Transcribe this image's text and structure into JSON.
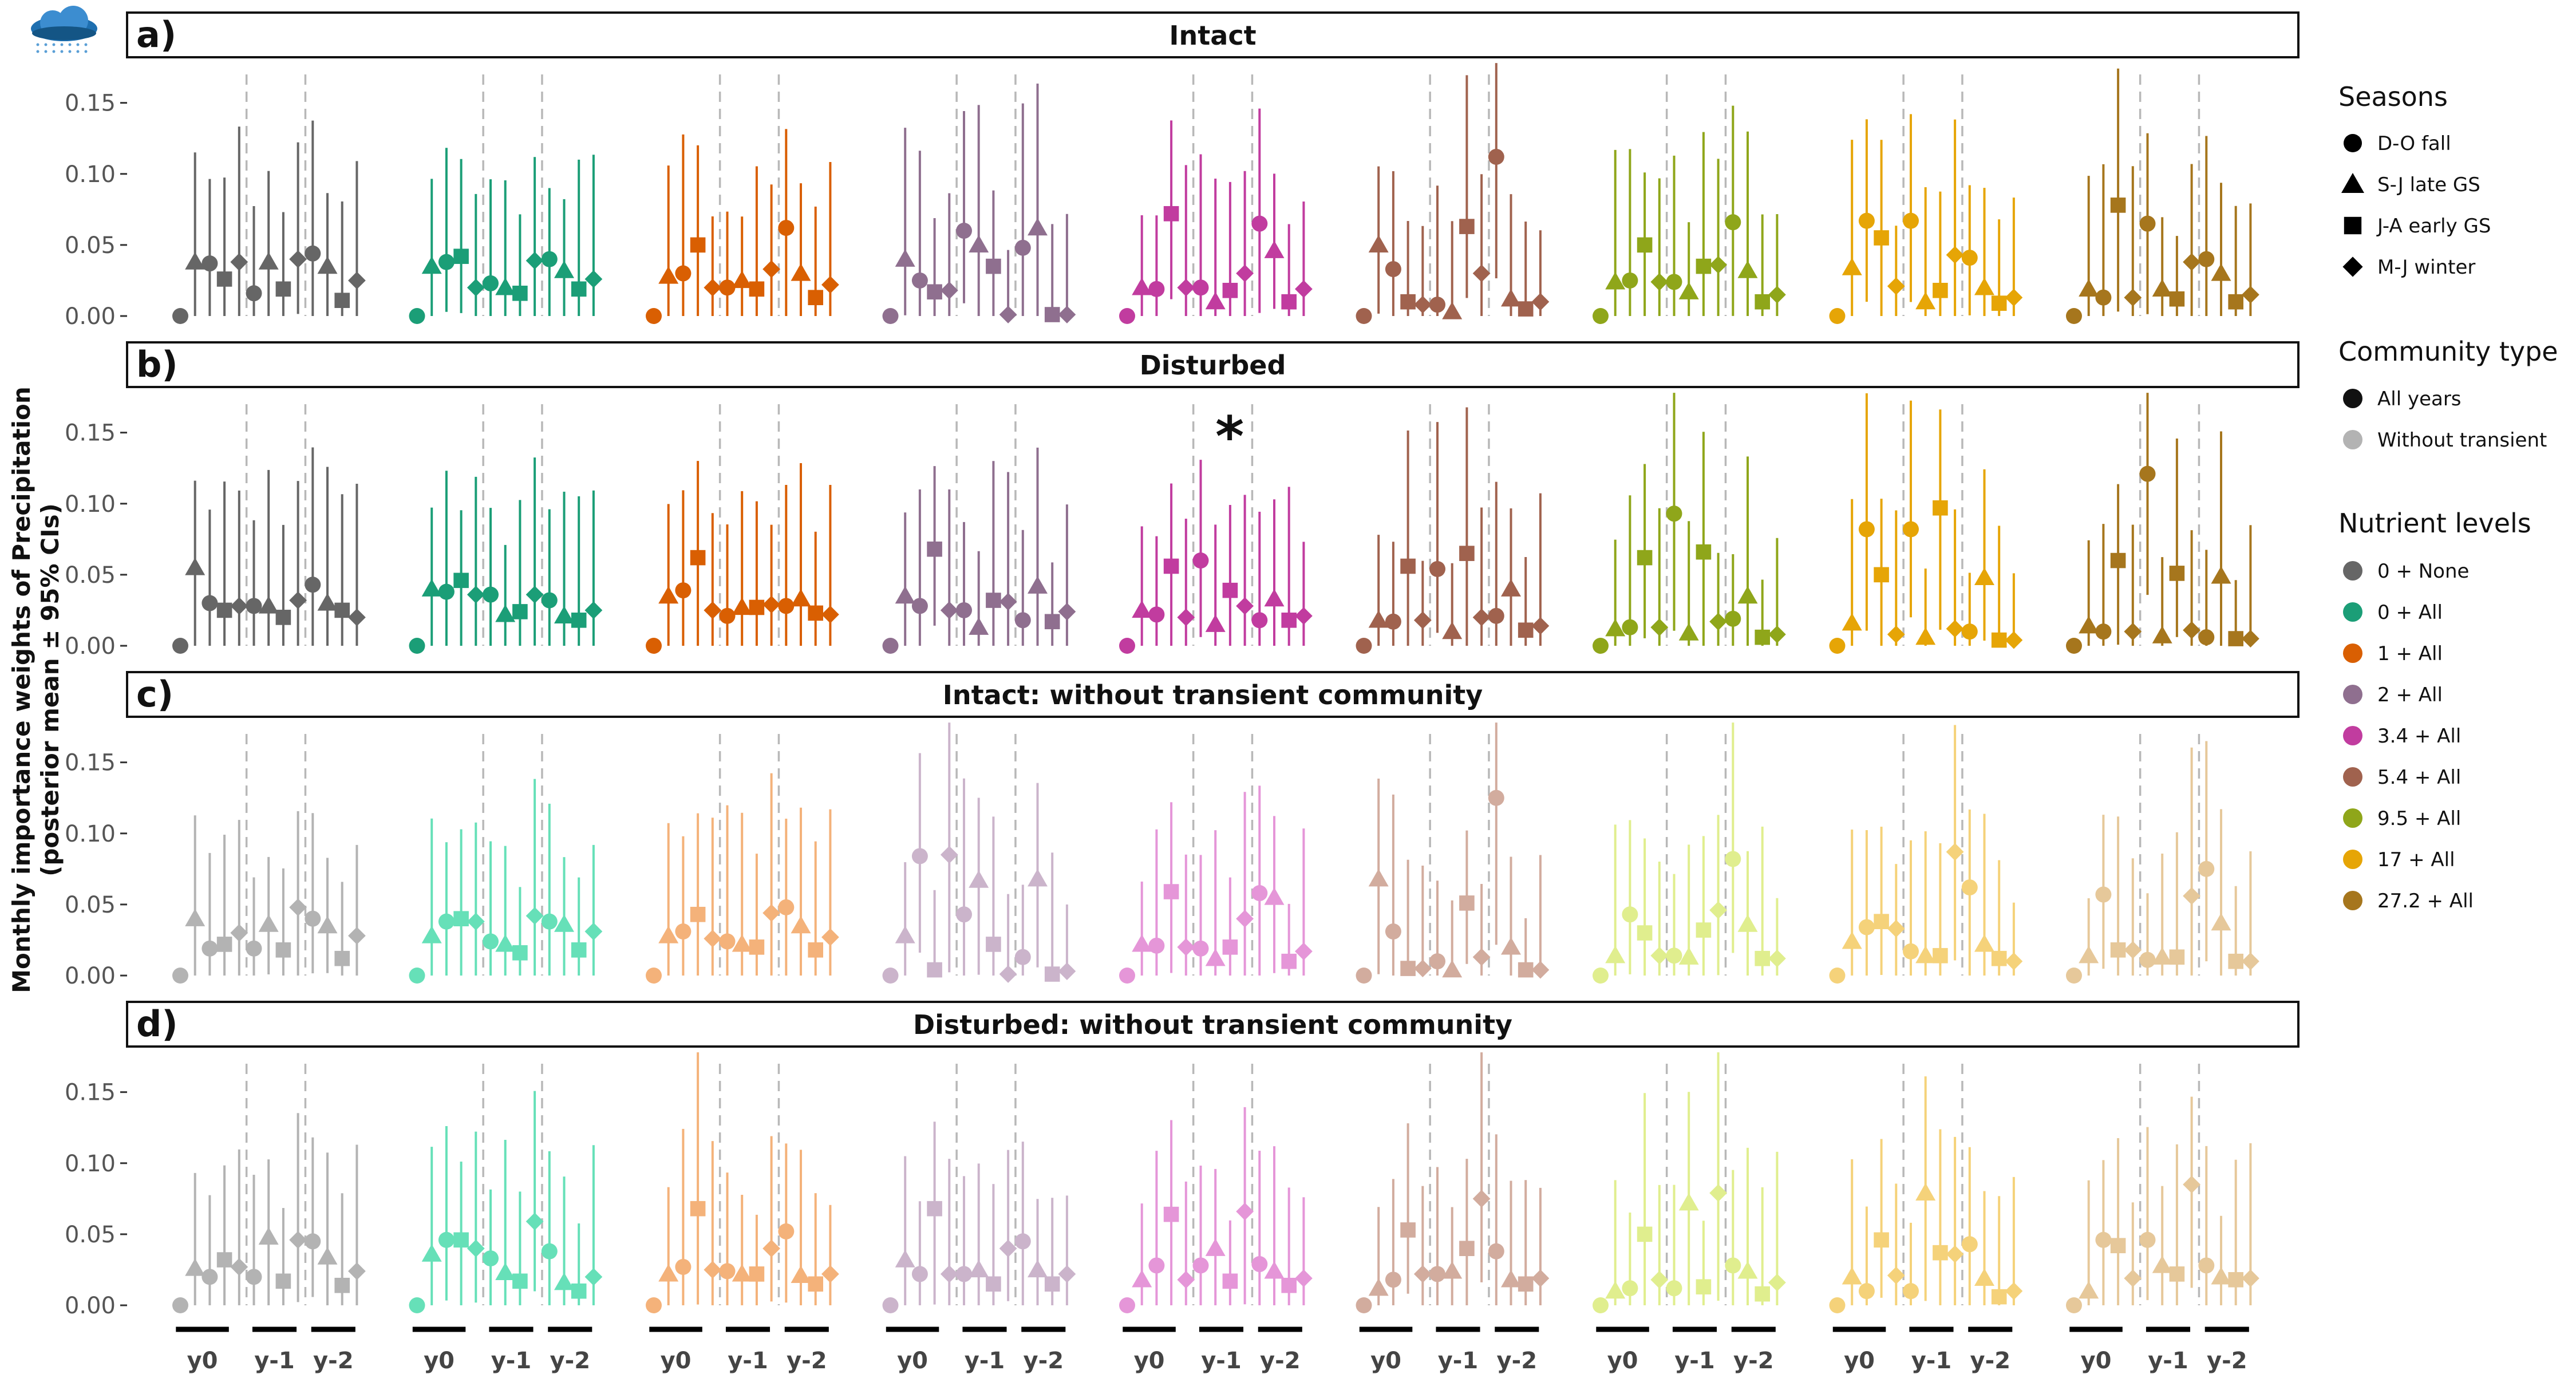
{
  "chart_data": {
    "type": "scatter",
    "ylabel": "Monthly importance weights of Precipitation\n(posterior mean ± 95% CIs)",
    "yticks": [
      0.0,
      0.05,
      0.1,
      0.15
    ],
    "ylim": [
      0,
      0.17
    ],
    "x_labels": [
      "y0",
      "y-1",
      "y-2"
    ],
    "panels": [
      {
        "letter": "a)",
        "title": "Intact",
        "faded": false
      },
      {
        "letter": "b)",
        "title": "Disturbed",
        "faded": false
      },
      {
        "letter": "c)",
        "title": "Intact: without transient community",
        "faded": true
      },
      {
        "letter": "d)",
        "title": "Disturbed: without transient community",
        "faded": true
      }
    ],
    "annotations": [
      {
        "panel": 1,
        "group": 4,
        "text": "*"
      }
    ],
    "groups": [
      {
        "name": "0 + None",
        "color": "#666666",
        "light": "#B3B3B3"
      },
      {
        "name": "0 + All",
        "color": "#1B9E77",
        "light": "#66E0B8"
      },
      {
        "name": "1 + All",
        "color": "#D95F02",
        "light": "#F4B27A"
      },
      {
        "name": "2 + All",
        "color": "#8F6F8F",
        "light": "#CBB4CB"
      },
      {
        "name": "3.4 + All",
        "color": "#C13C9F",
        "light": "#E596D8"
      },
      {
        "name": "5.4 + All",
        "color": "#A0624E",
        "light": "#D2AC9E"
      },
      {
        "name": "9.5 + All",
        "color": "#8FA61A",
        "light": "#E0EE8E"
      },
      {
        "name": "17 + All",
        "color": "#E6A506",
        "light": "#F5D27A"
      },
      {
        "name": "27.2 + All",
        "color": "#A6761D",
        "light": "#E6C89A"
      }
    ],
    "legend": {
      "seasons_title": "Seasons",
      "seasons": [
        {
          "label": "D-O fall",
          "shape": "circle"
        },
        {
          "label": "S-J late GS",
          "shape": "triangle"
        },
        {
          "label": "J-A early GS",
          "shape": "square"
        },
        {
          "label": "M-J winter",
          "shape": "diamond"
        }
      ],
      "community_title": "Community type",
      "community": [
        {
          "label": "All years",
          "color": "#111111"
        },
        {
          "label": "Without transient",
          "color": "#B3B3B3"
        }
      ],
      "nutrient_title": "Nutrient levels"
    },
    "season_sequence": [
      "circle",
      "triangle",
      "circle",
      "square",
      "diamond",
      "circle",
      "triangle",
      "square",
      "diamond",
      "circle",
      "triangle",
      "square",
      "diamond"
    ],
    "values": [
      [
        [
          0.0,
          0.038,
          0.037,
          0.026,
          0.038,
          0.016,
          0.038,
          0.019,
          0.04,
          0.044,
          0.035,
          0.011,
          0.025
        ],
        [
          0.0,
          0.035,
          0.038,
          0.042,
          0.02,
          0.023,
          0.02,
          0.016,
          0.039,
          0.04,
          0.032,
          0.019,
          0.026
        ],
        [
          0.0,
          0.028,
          0.03,
          0.05,
          0.02,
          0.02,
          0.025,
          0.019,
          0.033,
          0.062,
          0.03,
          0.013,
          0.022
        ],
        [
          0.0,
          0.04,
          0.025,
          0.017,
          0.018,
          0.06,
          0.05,
          0.035,
          0.001,
          0.048,
          0.062,
          0.001,
          0.001
        ],
        [
          0.0,
          0.02,
          0.019,
          0.072,
          0.02,
          0.02,
          0.01,
          0.018,
          0.03,
          0.065,
          0.046,
          0.01,
          0.019
        ],
        [
          0.0,
          0.05,
          0.033,
          0.01,
          0.008,
          0.008,
          0.003,
          0.063,
          0.03,
          0.112,
          0.012,
          0.005,
          0.01
        ],
        [
          0.0,
          0.024,
          0.025,
          0.05,
          0.024,
          0.024,
          0.017,
          0.035,
          0.036,
          0.066,
          0.032,
          0.01,
          0.015
        ],
        [
          0.0,
          0.034,
          0.067,
          0.055,
          0.021,
          0.067,
          0.01,
          0.018,
          0.043,
          0.041,
          0.02,
          0.009,
          0.013
        ],
        [
          0.0,
          0.019,
          0.013,
          0.078,
          0.013,
          0.065,
          0.019,
          0.012,
          0.038,
          0.04,
          0.03,
          0.01,
          0.015
        ]
      ],
      [
        [
          0.0,
          0.055,
          0.03,
          0.025,
          0.028,
          0.028,
          0.028,
          0.02,
          0.032,
          0.043,
          0.03,
          0.025,
          0.02
        ],
        [
          0.0,
          0.04,
          0.038,
          0.046,
          0.036,
          0.036,
          0.022,
          0.024,
          0.036,
          0.032,
          0.021,
          0.018,
          0.025
        ],
        [
          0.0,
          0.035,
          0.039,
          0.062,
          0.025,
          0.021,
          0.027,
          0.027,
          0.029,
          0.028,
          0.033,
          0.023,
          0.022
        ],
        [
          0.0,
          0.035,
          0.028,
          0.068,
          0.025,
          0.025,
          0.013,
          0.032,
          0.031,
          0.018,
          0.042,
          0.017,
          0.024
        ],
        [
          0.0,
          0.025,
          0.022,
          0.056,
          0.02,
          0.06,
          0.015,
          0.039,
          0.028,
          0.018,
          0.033,
          0.018,
          0.021
        ],
        [
          0.0,
          0.018,
          0.017,
          0.056,
          0.018,
          0.054,
          0.01,
          0.065,
          0.02,
          0.021,
          0.04,
          0.011,
          0.014
        ],
        [
          0.0,
          0.012,
          0.013,
          0.062,
          0.013,
          0.093,
          0.009,
          0.066,
          0.017,
          0.019,
          0.035,
          0.006,
          0.008
        ],
        [
          0.0,
          0.016,
          0.082,
          0.05,
          0.008,
          0.082,
          0.006,
          0.097,
          0.012,
          0.01,
          0.048,
          0.004,
          0.004
        ],
        [
          0.0,
          0.014,
          0.01,
          0.06,
          0.01,
          0.121,
          0.007,
          0.051,
          0.011,
          0.006,
          0.049,
          0.005,
          0.005
        ]
      ],
      [
        [
          0.0,
          0.04,
          0.019,
          0.022,
          0.03,
          0.019,
          0.036,
          0.018,
          0.048,
          0.04,
          0.035,
          0.012,
          0.028
        ],
        [
          0.0,
          0.028,
          0.038,
          0.04,
          0.038,
          0.024,
          0.022,
          0.016,
          0.042,
          0.038,
          0.036,
          0.018,
          0.031
        ],
        [
          0.0,
          0.028,
          0.031,
          0.043,
          0.026,
          0.024,
          0.022,
          0.02,
          0.044,
          0.048,
          0.035,
          0.018,
          0.027
        ],
        [
          0.0,
          0.028,
          0.084,
          0.004,
          0.085,
          0.043,
          0.067,
          0.022,
          0.001,
          0.013,
          0.068,
          0.001,
          0.003
        ],
        [
          0.0,
          0.022,
          0.021,
          0.059,
          0.02,
          0.019,
          0.012,
          0.02,
          0.04,
          0.058,
          0.055,
          0.01,
          0.017
        ],
        [
          0.0,
          0.068,
          0.031,
          0.005,
          0.005,
          0.01,
          0.004,
          0.051,
          0.013,
          0.125,
          0.02,
          0.004,
          0.004
        ],
        [
          0.0,
          0.014,
          0.043,
          0.03,
          0.014,
          0.014,
          0.013,
          0.032,
          0.046,
          0.082,
          0.036,
          0.012,
          0.012
        ],
        [
          0.0,
          0.024,
          0.034,
          0.038,
          0.033,
          0.017,
          0.014,
          0.014,
          0.087,
          0.062,
          0.022,
          0.012,
          0.01
        ],
        [
          0.0,
          0.014,
          0.057,
          0.018,
          0.018,
          0.011,
          0.013,
          0.013,
          0.056,
          0.075,
          0.037,
          0.01,
          0.01
        ]
      ],
      [
        [
          0.0,
          0.026,
          0.02,
          0.032,
          0.027,
          0.02,
          0.048,
          0.017,
          0.046,
          0.045,
          0.034,
          0.014,
          0.024
        ],
        [
          0.0,
          0.036,
          0.046,
          0.046,
          0.04,
          0.033,
          0.023,
          0.017,
          0.059,
          0.038,
          0.016,
          0.01,
          0.02
        ],
        [
          0.0,
          0.022,
          0.027,
          0.068,
          0.025,
          0.024,
          0.022,
          0.022,
          0.04,
          0.052,
          0.021,
          0.015,
          0.022
        ],
        [
          0.0,
          0.032,
          0.022,
          0.068,
          0.022,
          0.022,
          0.025,
          0.015,
          0.04,
          0.045,
          0.025,
          0.015,
          0.022
        ],
        [
          0.0,
          0.018,
          0.028,
          0.064,
          0.018,
          0.028,
          0.04,
          0.017,
          0.066,
          0.029,
          0.024,
          0.014,
          0.019
        ],
        [
          0.0,
          0.012,
          0.018,
          0.053,
          0.022,
          0.022,
          0.024,
          0.04,
          0.075,
          0.038,
          0.018,
          0.015,
          0.019
        ],
        [
          0.0,
          0.01,
          0.012,
          0.05,
          0.018,
          0.012,
          0.072,
          0.013,
          0.079,
          0.028,
          0.024,
          0.008,
          0.016
        ],
        [
          0.0,
          0.02,
          0.01,
          0.046,
          0.021,
          0.01,
          0.079,
          0.037,
          0.036,
          0.043,
          0.019,
          0.006,
          0.01
        ],
        [
          0.0,
          0.01,
          0.046,
          0.042,
          0.019,
          0.046,
          0.028,
          0.022,
          0.085,
          0.028,
          0.02,
          0.018,
          0.019
        ]
      ]
    ]
  }
}
